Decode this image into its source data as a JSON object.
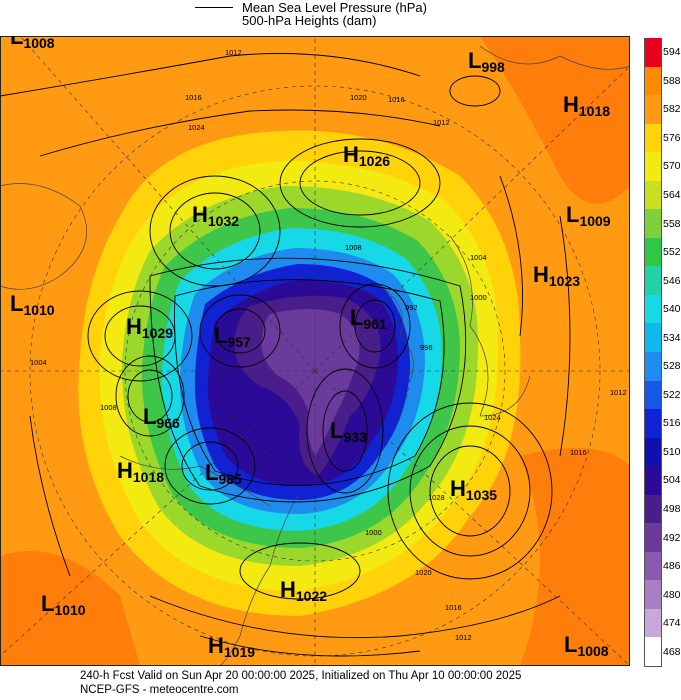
{
  "legend": {
    "line1": "Mean Sea Level Pressure (hPa)",
    "line2": "500-hPa Heights (dam)"
  },
  "footer": {
    "line1": "240-h Fcst Valid on Sun Apr 20 00:00:00 2025, Initialized on Thu Apr 10 00:00:00 2025",
    "line2": "NCEP-GFS  - meteocentre.com"
  },
  "colorbar": {
    "levels": [
      "594",
      "588",
      "582",
      "576",
      "570",
      "564",
      "558",
      "552",
      "546",
      "540",
      "534",
      "528",
      "522",
      "516",
      "510",
      "504",
      "498",
      "492",
      "486",
      "480",
      "474",
      "468"
    ],
    "colors": [
      "#e8001c",
      "#ff8a00",
      "#ff9a12",
      "#ffd20a",
      "#f2ea10",
      "#c8e020",
      "#7cd23a",
      "#2ec846",
      "#20d2a6",
      "#16d8e6",
      "#10b8f0",
      "#1e8cee",
      "#1858e6",
      "#1022d2",
      "#1010b0",
      "#2a0a96",
      "#4a1e8a",
      "#6a3a9c",
      "#8a5ab0",
      "#a87ec4",
      "#c8a8da",
      "#ffffff"
    ]
  },
  "pressure_centers": [
    {
      "type": "L",
      "value": "1008"
    },
    {
      "type": "L",
      "value": "998"
    },
    {
      "type": "H",
      "value": "1018"
    },
    {
      "type": "H",
      "value": "1026"
    },
    {
      "type": "H",
      "value": "1032"
    },
    {
      "type": "L",
      "value": "1009"
    },
    {
      "type": "H",
      "value": "1023"
    },
    {
      "type": "L",
      "value": "1010"
    },
    {
      "type": "H",
      "value": "1029"
    },
    {
      "type": "L",
      "value": "966"
    },
    {
      "type": "H",
      "value": "1018"
    },
    {
      "type": "L",
      "value": "985"
    },
    {
      "type": "L",
      "value": "933"
    },
    {
      "type": "H",
      "value": "1035"
    },
    {
      "type": "H",
      "value": "1022"
    },
    {
      "type": "L",
      "value": "1010"
    },
    {
      "type": "H",
      "value": "1019"
    },
    {
      "type": "L",
      "value": "1008"
    },
    {
      "type": "L",
      "value": "957"
    },
    {
      "type": "L",
      "value": "961"
    }
  ],
  "isobar_labels": [
    "1012",
    "1016",
    "1020",
    "1024",
    "1016",
    "1012",
    "1008",
    "1004",
    "1000",
    "996",
    "992",
    "1024",
    "1028",
    "1016",
    "1012",
    "1008",
    "1004",
    "1000",
    "1020",
    "1016",
    "1012"
  ]
}
